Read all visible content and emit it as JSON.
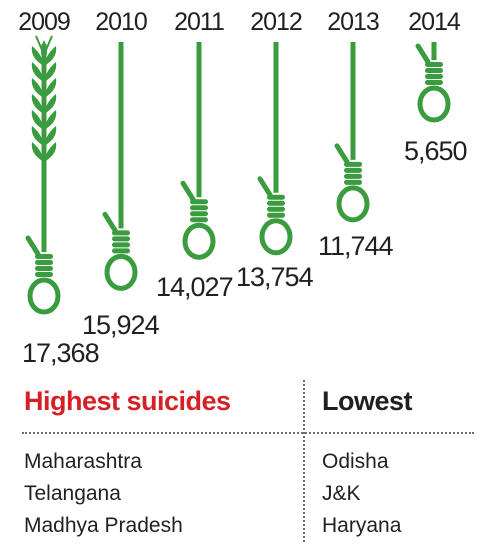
{
  "chart_data": {
    "type": "bar",
    "categories": [
      "2009",
      "2010",
      "2011",
      "2012",
      "2013",
      "2014"
    ],
    "values": [
      17368,
      15924,
      14027,
      13754,
      11744,
      5650
    ],
    "value_labels": [
      "17,368",
      "15,924",
      "14,027",
      "13,754",
      "11,744",
      "5,650"
    ],
    "title": "",
    "xlabel": "",
    "ylabel": "",
    "ylim": [
      0,
      17368
    ],
    "grid": false,
    "legend": "none",
    "colors": {
      "rope": "#3a9b3f",
      "text": "#231f20",
      "accent": "#d71f26"
    }
  },
  "legend": {
    "highest_title": "Highest suicides",
    "lowest_title": "Lowest",
    "highest": [
      "Maharashtra",
      "Telangana",
      "Madhya Pradesh"
    ],
    "lowest": [
      "Odisha",
      "J&K",
      "Haryana"
    ]
  }
}
